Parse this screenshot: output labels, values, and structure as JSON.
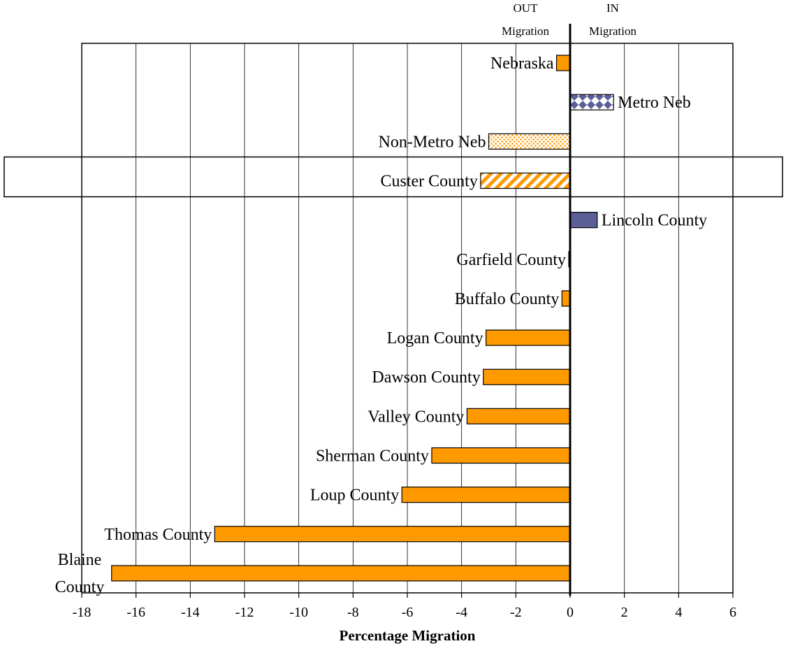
{
  "chart_data": {
    "type": "bar",
    "orientation": "horizontal",
    "xlabel": "Percentage Migration",
    "xlim": [
      -18,
      6
    ],
    "x_ticks": [
      "-18",
      "-16",
      "-14",
      "-12",
      "-10",
      "-8",
      "-6",
      "-4",
      "-2",
      "0",
      "2",
      "4",
      "6"
    ],
    "grid": "vertical",
    "direction_labels": {
      "out": [
        "OUT",
        "Migration"
      ],
      "in": [
        "IN",
        "Migration"
      ]
    },
    "highlighted_category": "Custer County",
    "bars": [
      {
        "label": "Nebraska",
        "value": -0.5,
        "fill": "solid",
        "color": "#FF9900"
      },
      {
        "label": "Metro Neb",
        "value": 1.6,
        "fill": "diamond",
        "color": "#5B5F97"
      },
      {
        "label": "Non-Metro Neb",
        "value": -3.0,
        "fill": "dotted",
        "color": "#FF9900"
      },
      {
        "label": "Custer County",
        "value": -3.3,
        "fill": "striped",
        "color": "#FF9900"
      },
      {
        "label": "Lincoln County",
        "value": 1.0,
        "fill": "solid",
        "color": "#5B5F97"
      },
      {
        "label": "Garfield County",
        "value": -0.05,
        "fill": "solid",
        "color": "#FF9900"
      },
      {
        "label": "Buffalo County",
        "value": -0.3,
        "fill": "solid",
        "color": "#FF9900"
      },
      {
        "label": "Logan County",
        "value": -3.1,
        "fill": "solid",
        "color": "#FF9900"
      },
      {
        "label": "Dawson County",
        "value": -3.2,
        "fill": "solid",
        "color": "#FF9900"
      },
      {
        "label": "Valley County",
        "value": -3.8,
        "fill": "solid",
        "color": "#FF9900"
      },
      {
        "label": "Sherman County",
        "value": -5.1,
        "fill": "solid",
        "color": "#FF9900"
      },
      {
        "label": "Loup County",
        "value": -6.2,
        "fill": "solid",
        "color": "#FF9900"
      },
      {
        "label": "Thomas County",
        "value": -13.1,
        "fill": "solid",
        "color": "#FF9900"
      },
      {
        "label": "Blaine County",
        "value": -16.9,
        "fill": "solid",
        "color": "#FF9900",
        "label_lines": [
          "Blaine",
          "County"
        ]
      }
    ]
  }
}
